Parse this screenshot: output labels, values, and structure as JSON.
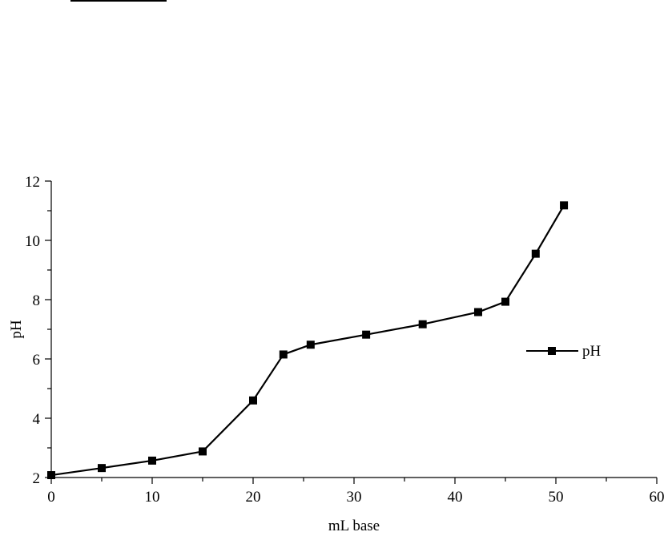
{
  "chart_data": {
    "type": "line",
    "title": "",
    "xlabel": "mL base",
    "ylabel": "pH",
    "xlim": [
      0,
      60
    ],
    "ylim": [
      2,
      12
    ],
    "x_ticks": [
      0,
      10,
      20,
      30,
      40,
      50,
      60
    ],
    "y_ticks": [
      2,
      4,
      6,
      8,
      10,
      12
    ],
    "grid": false,
    "legend_position": "right",
    "series": [
      {
        "name": "pH",
        "color": "#000000",
        "marker": "square",
        "x": [
          0,
          5,
          10,
          15,
          20,
          23,
          25.7,
          31.2,
          36.8,
          42.3,
          45,
          48,
          50.8
        ],
        "y": [
          2.08,
          2.32,
          2.57,
          2.88,
          4.6,
          6.15,
          6.48,
          6.82,
          7.17,
          7.58,
          7.93,
          9.55,
          11.18
        ]
      }
    ]
  }
}
